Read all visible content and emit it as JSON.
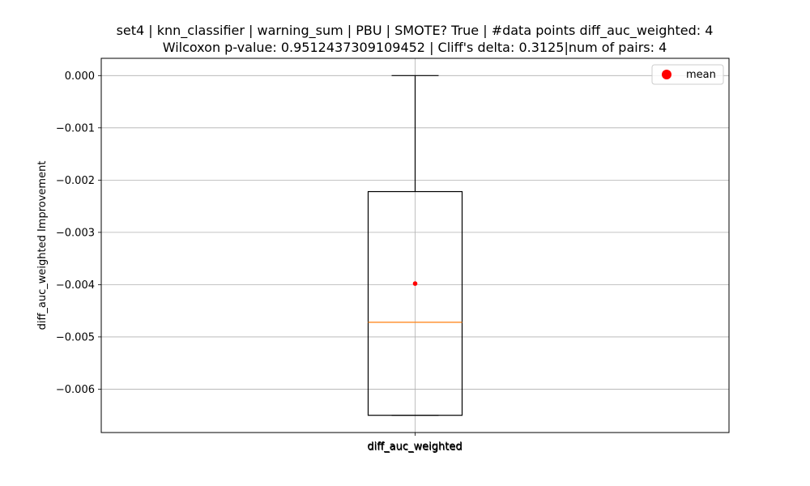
{
  "chart_data": {
    "type": "box",
    "title_line1": "set4 | knn_classifier | warning_sum | PBU | SMOTE? True | #data points diff_auc_weighted: 4",
    "title_line2": "Wilcoxon p-value: 0.9512437309109452 | Cliff's delta: 0.3125|num of pairs: 4",
    "xlabel": "diff_auc_weighted",
    "ylabel": "diff_auc_weighted Improvement",
    "categories": [
      "diff_auc_weighted"
    ],
    "ylim": [
      -0.00683,
      0.00033
    ],
    "yticks": [
      0.0,
      -0.001,
      -0.002,
      -0.003,
      -0.004,
      -0.005,
      -0.006
    ],
    "ytick_labels": [
      "0.000",
      "−0.001",
      "−0.002",
      "−0.003",
      "−0.004",
      "−0.005",
      "−0.006"
    ],
    "grid": true,
    "box": {
      "whisker_low": -0.0065,
      "q1": -0.0065,
      "median": -0.00472,
      "q3": -0.00222,
      "whisker_high": 0.0,
      "mean": -0.00398
    },
    "legend": {
      "position": "top-right",
      "entries": [
        {
          "label": "mean",
          "color": "#ff0000"
        }
      ]
    },
    "colors": {
      "box": "#000000",
      "median": "#ff7f0e",
      "mean": "#ff0000",
      "grid": "#b0b0b0"
    }
  }
}
